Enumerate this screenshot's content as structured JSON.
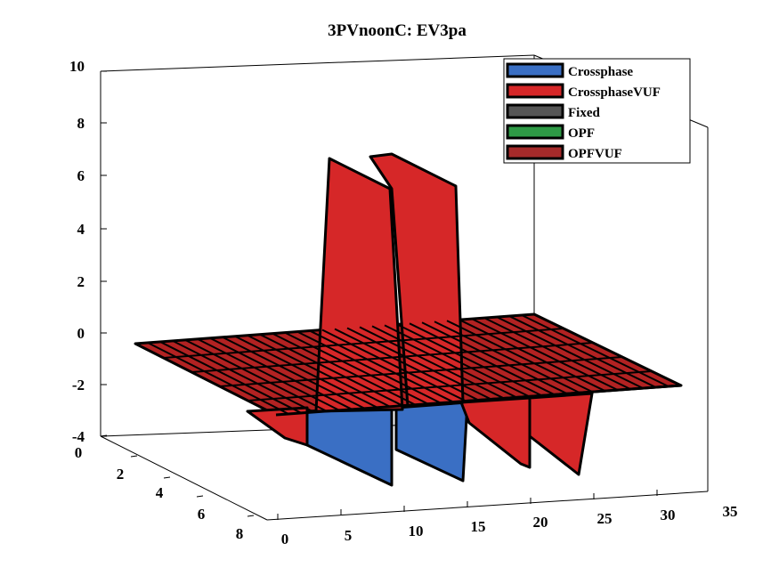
{
  "chart_data": {
    "type": "surface3d",
    "title": "3PVnoonC: EV3pa",
    "xlabel": "",
    "ylabel": "",
    "zlabel": "",
    "x_ticks": [
      "0",
      "5",
      "10",
      "15",
      "20",
      "25",
      "30",
      "35"
    ],
    "y_ticks": [
      "0",
      "2",
      "4",
      "6",
      "8"
    ],
    "z_ticks": [
      "-4",
      "-2",
      "0",
      "2",
      "4",
      "6",
      "8",
      "10"
    ],
    "xlim": [
      0,
      35
    ],
    "ylim": [
      0,
      8
    ],
    "zlim": [
      -4,
      10
    ],
    "grid": false,
    "legend_position": "top-right",
    "series": [
      {
        "name": "Crossphase",
        "color": "#3a6fc4",
        "visible_region": "negative lobes near x=8-15, y≈8"
      },
      {
        "name": "CrossphaseVUF",
        "color": "#d62728",
        "peaks": [
          {
            "x": 8,
            "y": 8,
            "z": 6.6
          },
          {
            "x": 13,
            "y": 8,
            "z": 6.8
          }
        ],
        "troughs": [
          {
            "x": 20,
            "y": 8,
            "z": -2.5
          },
          {
            "x": 25,
            "y": 8,
            "z": -2.5
          }
        ]
      },
      {
        "name": "Fixed",
        "color": "#555555"
      },
      {
        "name": "OPF",
        "color": "#2e9a46"
      },
      {
        "name": "OPFVUF",
        "color": "#a52a2a",
        "plane_value": 0
      }
    ]
  }
}
